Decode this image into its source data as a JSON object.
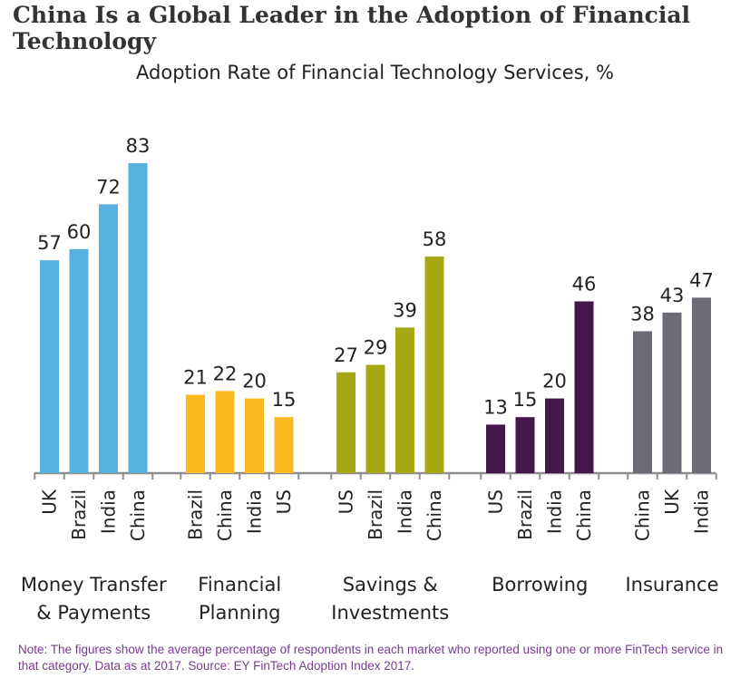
{
  "title": "China Is a Global Leader in the Adoption of Financial Technology",
  "subtitle": "Adoption Rate of Financial Technology Services, %",
  "note": "Note: The figures show the average percentage of respondents in each market who reported using one or more FinTech service in that category. Data as at 2017. Source: EY FinTech Adoption Index 2017.",
  "chart_data": {
    "type": "bar",
    "title": "Adoption Rate of Financial Technology Services, %",
    "ylim": [
      0,
      83
    ],
    "grid": false,
    "groups": [
      {
        "name": "Money Transfer & Payments",
        "lines": [
          "Money Transfer",
          "& Payments"
        ],
        "color": "#56b0e0",
        "categories": [
          "UK",
          "Brazil",
          "India",
          "China"
        ],
        "values": [
          57,
          60,
          72,
          83
        ]
      },
      {
        "name": "Financial Planning",
        "lines": [
          "Financial",
          "Planning"
        ],
        "color": "#fbb820",
        "categories": [
          "Brazil",
          "China",
          "India",
          "US"
        ],
        "values": [
          21,
          22,
          20,
          15
        ]
      },
      {
        "name": "Savings & Investments",
        "lines": [
          "Savings &",
          "Investments"
        ],
        "color": "#a6a812",
        "categories": [
          "US",
          "Brazil",
          "India",
          "China"
        ],
        "values": [
          27,
          29,
          39,
          58
        ]
      },
      {
        "name": "Borrowing",
        "lines": [
          "Borrowing"
        ],
        "color": "#43174a",
        "categories": [
          "US",
          "Brazil",
          "India",
          "China"
        ],
        "values": [
          13,
          15,
          20,
          46
        ]
      },
      {
        "name": "Insurance",
        "lines": [
          "Insurance"
        ],
        "color": "#6a6b75",
        "categories": [
          "China",
          "UK",
          "India"
        ],
        "values": [
          38,
          43,
          47
        ]
      }
    ]
  }
}
